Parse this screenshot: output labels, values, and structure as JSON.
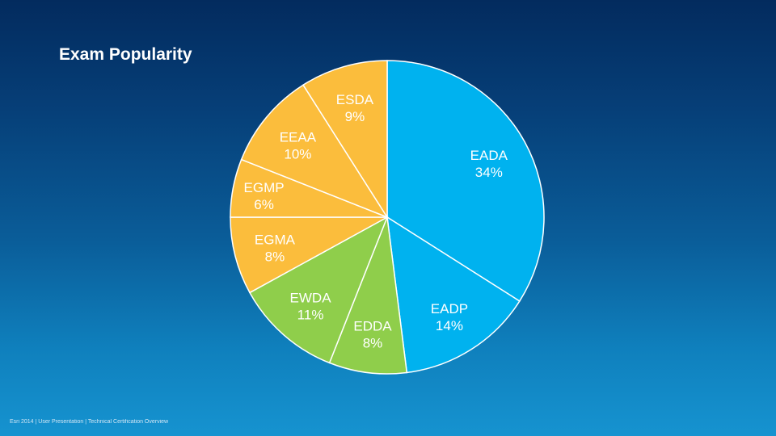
{
  "slide": {
    "title": "Exam Popularity",
    "footer": "Esri 2014 | User Presentation | Technical Certification Overview"
  },
  "colors": {
    "blue": "#00b2ef",
    "green": "#8fce4b",
    "orange": "#fbbd3c",
    "stroke": "#ffffff"
  },
  "chart_data": {
    "type": "pie",
    "title": "Exam Popularity",
    "start_angle_deg": 0,
    "direction": "clockwise",
    "categories": [
      "EADA",
      "EADP",
      "EDDA",
      "EWDA",
      "EGMA",
      "EGMP",
      "EEAA",
      "ESDA"
    ],
    "values": [
      34,
      14,
      8,
      11,
      8,
      6,
      10,
      9
    ],
    "value_labels": [
      "34%",
      "14%",
      "8%",
      "11%",
      "8%",
      "6%",
      "10%",
      "9%"
    ],
    "groups": [
      "blue",
      "blue",
      "green",
      "green",
      "orange",
      "orange",
      "orange",
      "orange"
    ]
  }
}
